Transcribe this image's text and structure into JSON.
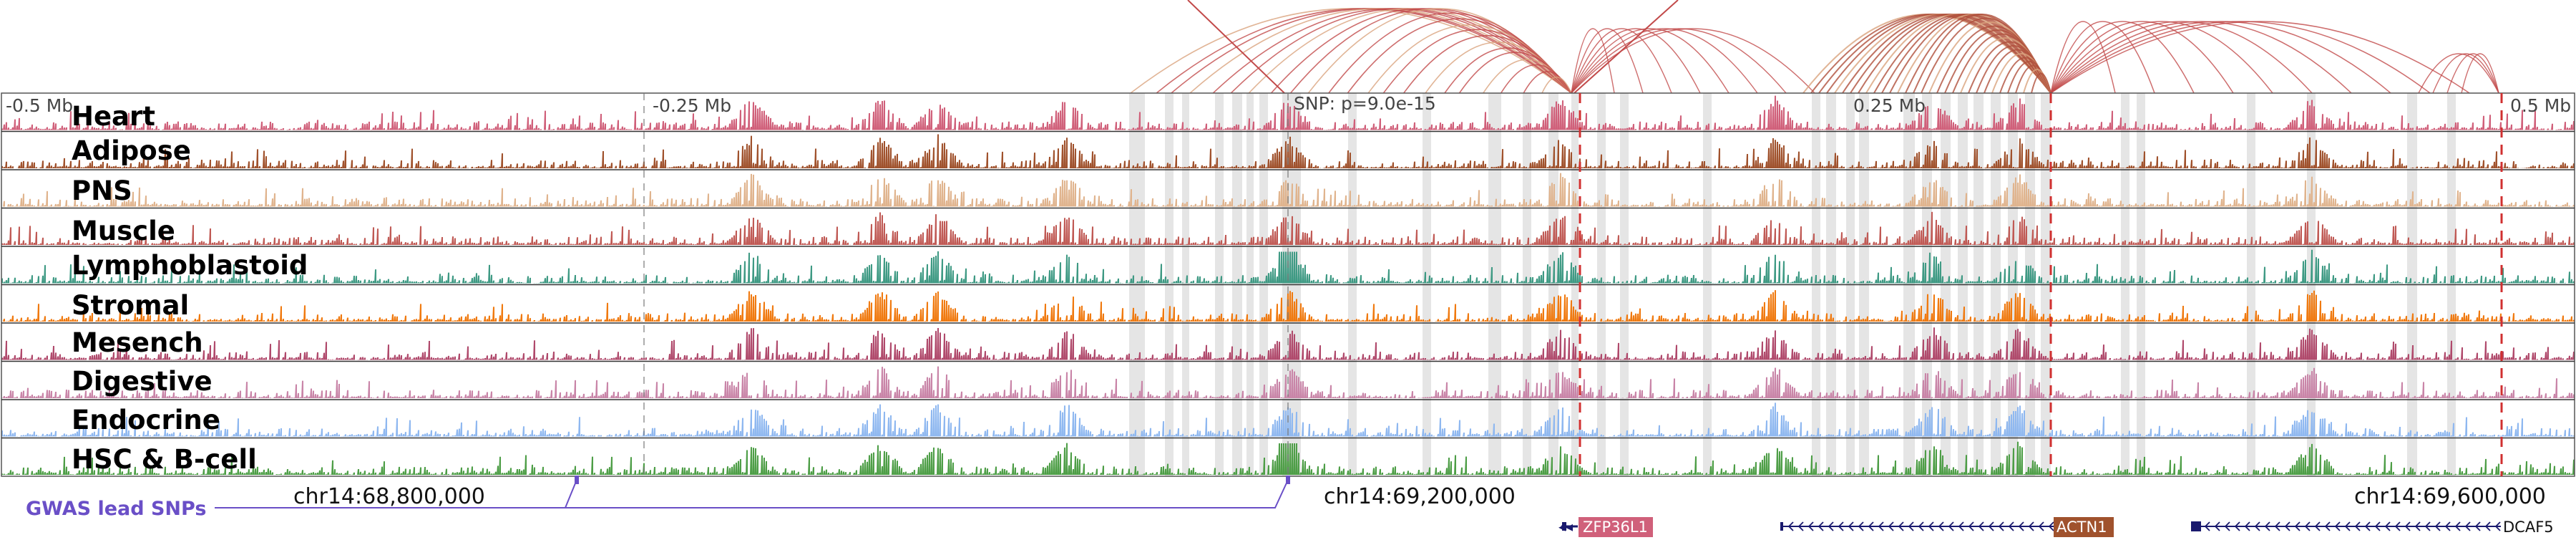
{
  "browser": {
    "scale_labels": [
      "-0.5 Mb",
      "-0.25 Mb",
      "0.25 Mb",
      "0.5 Mb"
    ],
    "snp_label": "SNP: p=9.0e-15",
    "coordinates": [
      "chr14:68,800,000",
      "chr14:69,200,000",
      "chr14:69,600,000"
    ],
    "gwas_label": "GWAS lead SNPs",
    "gwas_color": "#6a4fc7",
    "loop_color": "#c24a4a",
    "highlight_color": "#dcdcdc",
    "tracks": [
      {
        "name": "Heart",
        "color": "#d0607a"
      },
      {
        "name": "Adipose",
        "color": "#a0522d"
      },
      {
        "name": "PNS",
        "color": "#e0b48e"
      },
      {
        "name": "Muscle",
        "color": "#c05a55"
      },
      {
        "name": "Lymphoblastoid",
        "color": "#3f9a84"
      },
      {
        "name": "Stromal",
        "color": "#f07a10"
      },
      {
        "name": "Mesench",
        "color": "#b04a6c"
      },
      {
        "name": "Digestive",
        "color": "#c985a8"
      },
      {
        "name": "Endocrine",
        "color": "#8fb8f0"
      },
      {
        "name": "HSC & B-cell",
        "color": "#4e9e47"
      }
    ],
    "genes": [
      {
        "name": "ZFP36L1",
        "color": "#d0607a",
        "strand": "-",
        "label_box": true
      },
      {
        "name": "ACTN1",
        "color": "#a0522d",
        "strand": "-",
        "label_box": true
      },
      {
        "name": "DCAF5",
        "color": "#1a1a6e",
        "strand": "-",
        "label_box": false
      }
    ]
  }
}
